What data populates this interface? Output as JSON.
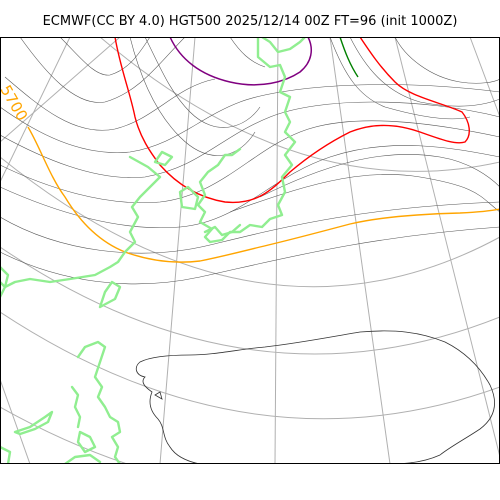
{
  "title": "ECMWF(CC BY 4.0) HGT500 2025/12/14 00Z FT=96 (init 1000Z)",
  "contour_labels": {
    "orange": "5700"
  },
  "colors": {
    "grid": "#b0b0b0",
    "contour": "#555555",
    "coastline": "#90ee90",
    "orange": "#ffa500",
    "red": "#ff0000",
    "purple": "#800080",
    "green": "#008000"
  }
}
